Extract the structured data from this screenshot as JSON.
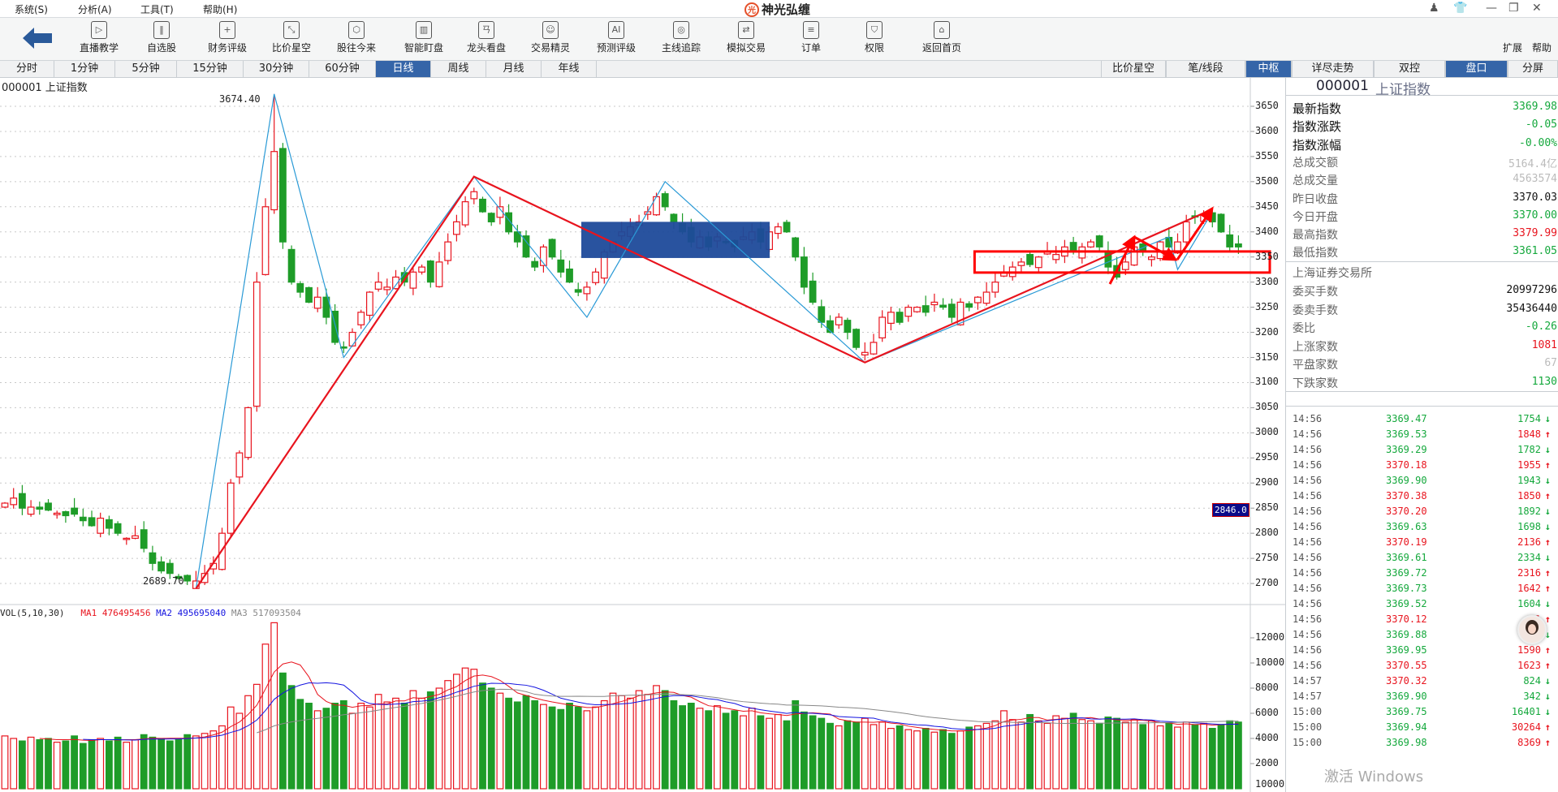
{
  "menu": [
    "系统(S)",
    "分析(A)",
    "工具(T)",
    "帮助(H)"
  ],
  "app_title": "神光弘缠",
  "toolbar": {
    "items": [
      "直播教学",
      "自选股",
      "财务评级",
      "比价星空",
      "股往今来",
      "智能盯盘",
      "龙头看盘",
      "交易精灵",
      "预测评级",
      "主线追踪",
      "模拟交易",
      "订单",
      "权限",
      "返回首页"
    ],
    "icons": [
      "▷",
      "‖",
      "+",
      "⤡",
      "⬡",
      "▥",
      "ㄢ",
      "☺",
      "AI",
      "◎",
      "⇄",
      "≡",
      "⛉",
      "⌂"
    ],
    "extend": "扩展",
    "help": "帮助"
  },
  "period_tabs": [
    "分时",
    "1分钟",
    "5分钟",
    "15分钟",
    "30分钟",
    "60分钟",
    "日线",
    "周线",
    "月线",
    "年线"
  ],
  "active_period": "日线",
  "right_tabs": [
    "比价星空",
    "笔/线段",
    "中枢",
    "详尽走势",
    "双控",
    "盘口",
    "分屏"
  ],
  "chart_header": "000001  上证指数",
  "annotations": {
    "high_label": "3674.40",
    "low_label": "2689.70",
    "crosshair_price": "2846.0"
  },
  "volume_legend": {
    "title": "VOL(5,10,30)",
    "ma1_label": "MA1",
    "ma1": "476495456",
    "ma2_label": "MA2",
    "ma2": "495695040",
    "ma3_label": "MA3",
    "ma3": "517093504"
  },
  "chart_data": {
    "type": "candlestick",
    "price_axis_ticks": [
      3650,
      3600,
      3550,
      3500,
      3450,
      3400,
      3350,
      3300,
      3250,
      3200,
      3150,
      3100,
      3050,
      3000,
      2950,
      2900,
      2850,
      2800,
      2750,
      2700
    ],
    "volume_axis_ticks": [
      "12000",
      "10000",
      "8000",
      "6000",
      "4000",
      "2000",
      "10000"
    ],
    "ylim": [
      2680,
      3710
    ],
    "close": [
      2860,
      2870,
      2850,
      2852,
      2848,
      2846,
      2840,
      2835,
      2838,
      2825,
      2815,
      2830,
      2810,
      2800,
      2790,
      2795,
      2770,
      2740,
      2725,
      2720,
      2710,
      2705,
      2705,
      2720,
      2740,
      2800,
      2900,
      2960,
      3050,
      3300,
      3450,
      3560,
      3380,
      3300,
      3280,
      3260,
      3270,
      3230,
      3180,
      3170,
      3200,
      3240,
      3280,
      3300,
      3290,
      3310,
      3300,
      3320,
      3330,
      3300,
      3340,
      3380,
      3420,
      3460,
      3480,
      3440,
      3420,
      3450,
      3400,
      3380,
      3350,
      3330,
      3370,
      3350,
      3320,
      3300,
      3280,
      3290,
      3320,
      3360,
      3380,
      3400,
      3410,
      3420,
      3440,
      3470,
      3450,
      3420,
      3400,
      3380,
      3390,
      3370,
      3390,
      3380,
      3370,
      3390,
      3400,
      3380,
      3400,
      3410,
      3400,
      3350,
      3290,
      3260,
      3220,
      3200,
      3230,
      3200,
      3170,
      3160,
      3180,
      3230,
      3240,
      3220,
      3250,
      3250,
      3240,
      3260,
      3250,
      3230,
      3260,
      3250,
      3270,
      3280,
      3300,
      3320,
      3330,
      3340,
      3335,
      3350,
      3360,
      3355,
      3370,
      3360,
      3370,
      3380,
      3370,
      3330,
      3310,
      3340,
      3370,
      3360,
      3350,
      3380,
      3370,
      3380,
      3420,
      3430,
      3435,
      3420,
      3400,
      3370,
      3370
    ],
    "volume": [
      4200,
      4000,
      3800,
      4100,
      3900,
      4000,
      3700,
      3800,
      4200,
      3600,
      3900,
      4000,
      3800,
      4100,
      3700,
      3900,
      4300,
      4100,
      4000,
      3800,
      3900,
      4300,
      4200,
      4400,
      4600,
      5000,
      6500,
      6000,
      7400,
      8300,
      11500,
      13200,
      9200,
      8200,
      7100,
      6800,
      6200,
      6400,
      6800,
      7000,
      6000,
      6800,
      6500,
      7500,
      6900,
      7200,
      6800,
      7800,
      7200,
      7700,
      8000,
      8600,
      9100,
      9600,
      9500,
      8400,
      8000,
      7600,
      7200,
      6900,
      7400,
      7000,
      6700,
      6500,
      6300,
      6800,
      6500,
      6200,
      6500,
      7000,
      7600,
      7400,
      7200,
      7800,
      7500,
      8200,
      7800,
      7000,
      6600,
      6800,
      6400,
      6200,
      6600,
      6000,
      6200,
      5800,
      6400,
      5800,
      5600,
      5900,
      5400,
      7000,
      6100,
      5800,
      5600,
      5200,
      5000,
      5400,
      5300,
      5600,
      5100,
      5300,
      4800,
      5000,
      4700,
      4600,
      4800,
      4500,
      4700,
      4400,
      4600,
      4900,
      5000,
      5200,
      5400,
      6200,
      5500,
      5300,
      5900,
      5400,
      5200,
      5800,
      5600,
      6000,
      5500,
      5400,
      5200,
      5700,
      5600,
      5300,
      5500,
      5100,
      5400,
      5000,
      5200,
      4900,
      5300,
      5100,
      5200,
      4800,
      5100,
      5400,
      5300
    ],
    "extremes": {
      "high": {
        "index": 31,
        "value": 3674.4
      },
      "low": {
        "index": 22,
        "value": 2689.7
      }
    },
    "segments_red": [
      [
        22,
        2689.7
      ],
      [
        54,
        3510
      ],
      [
        99,
        3140
      ],
      [
        139,
        3445
      ]
    ],
    "strokes_blue": [
      [
        22,
        2689.7
      ],
      [
        31,
        3674.4
      ],
      [
        39,
        3150
      ],
      [
        54,
        3510
      ],
      [
        67,
        3230
      ],
      [
        76,
        3500
      ],
      [
        99,
        3140
      ],
      [
        134,
        3390
      ],
      [
        135,
        3325
      ],
      [
        139,
        3440
      ]
    ],
    "pivot_zone_blue": {
      "from": 67,
      "to": 88,
      "top": 3420,
      "bottom": 3348
    },
    "pivot_zone_red": {
      "from": 112,
      "top": 3361,
      "bottom": 3319
    },
    "colors": {
      "up": "#e8141e",
      "down": "#1e9c28",
      "ma1": "#e8141e",
      "ma2": "#1414e0",
      "ma3": "#888888"
    }
  },
  "quote": {
    "code": "000001",
    "name": "上证指数",
    "rows": [
      {
        "label": "最新指数",
        "value": "3369.98",
        "color": "g",
        "big": true
      },
      {
        "label": "指数涨跌",
        "value": "-0.05",
        "color": "g",
        "big": true
      },
      {
        "label": "指数涨幅",
        "value": "-0.00%",
        "color": "g",
        "big": true
      },
      {
        "label": "总成交额",
        "value": "5164.4亿",
        "color": "gray"
      },
      {
        "label": "总成交量",
        "value": "4563574",
        "color": "gray"
      },
      {
        "label": "昨日收盘",
        "value": "3370.03",
        "color": "k"
      },
      {
        "label": "今日开盘",
        "value": "3370.00",
        "color": "g"
      },
      {
        "label": "最高指数",
        "value": "3379.99",
        "color": "r"
      },
      {
        "label": "最低指数",
        "value": "3361.05",
        "color": "g"
      }
    ],
    "exchange": "上海证券交易所",
    "rows2": [
      {
        "label": "委买手数",
        "value": "20997296",
        "color": "k"
      },
      {
        "label": "委卖手数",
        "value": "35436440",
        "color": "k"
      },
      {
        "label": "委比",
        "value": "-0.26",
        "color": "g"
      },
      {
        "label": "上涨家数",
        "value": "1081",
        "color": "r"
      },
      {
        "label": "平盘家数",
        "value": "67",
        "color": "gray"
      },
      {
        "label": "下跌家数",
        "value": "1130",
        "color": "g"
      }
    ]
  },
  "ticks": [
    {
      "time": "14:56",
      "price": "3369.47",
      "pc": "g",
      "vol": "1754",
      "dir": "down"
    },
    {
      "time": "14:56",
      "price": "3369.53",
      "pc": "g",
      "vol": "1848",
      "dir": "up"
    },
    {
      "time": "14:56",
      "price": "3369.29",
      "pc": "g",
      "vol": "1782",
      "dir": "down"
    },
    {
      "time": "14:56",
      "price": "3370.18",
      "pc": "r",
      "vol": "1955",
      "dir": "up"
    },
    {
      "time": "14:56",
      "price": "3369.90",
      "pc": "g",
      "vol": "1943",
      "dir": "down"
    },
    {
      "time": "14:56",
      "price": "3370.38",
      "pc": "r",
      "vol": "1850",
      "dir": "up"
    },
    {
      "time": "14:56",
      "price": "3370.20",
      "pc": "r",
      "vol": "1892",
      "dir": "down"
    },
    {
      "time": "14:56",
      "price": "3369.63",
      "pc": "g",
      "vol": "1698",
      "dir": "down"
    },
    {
      "time": "14:56",
      "price": "3370.19",
      "pc": "r",
      "vol": "2136",
      "dir": "up"
    },
    {
      "time": "14:56",
      "price": "3369.61",
      "pc": "g",
      "vol": "2334",
      "dir": "down"
    },
    {
      "time": "14:56",
      "price": "3369.72",
      "pc": "g",
      "vol": "2316",
      "dir": "up"
    },
    {
      "time": "14:56",
      "price": "3369.73",
      "pc": "g",
      "vol": "1642",
      "dir": "up"
    },
    {
      "time": "14:56",
      "price": "3369.52",
      "pc": "g",
      "vol": "1604",
      "dir": "down"
    },
    {
      "time": "14:56",
      "price": "3370.12",
      "pc": "r",
      "vol": "1",
      "dir": "up"
    },
    {
      "time": "14:56",
      "price": "3369.88",
      "pc": "g",
      "vol": "1",
      "dir": "down"
    },
    {
      "time": "14:56",
      "price": "3369.95",
      "pc": "g",
      "vol": "1590",
      "dir": "up"
    },
    {
      "time": "14:56",
      "price": "3370.55",
      "pc": "r",
      "vol": "1623",
      "dir": "up"
    },
    {
      "time": "14:57",
      "price": "3370.32",
      "pc": "r",
      "vol": "824",
      "dir": "down"
    },
    {
      "time": "14:57",
      "price": "3369.90",
      "pc": "g",
      "vol": "342",
      "dir": "down"
    },
    {
      "time": "15:00",
      "price": "3369.75",
      "pc": "g",
      "vol": "16401",
      "dir": "down"
    },
    {
      "time": "15:00",
      "price": "3369.94",
      "pc": "g",
      "vol": "30264",
      "dir": "up"
    },
    {
      "time": "15:00",
      "price": "3369.98",
      "pc": "g",
      "vol": "8369",
      "dir": "up"
    }
  ],
  "watermark": "激活 Windows"
}
